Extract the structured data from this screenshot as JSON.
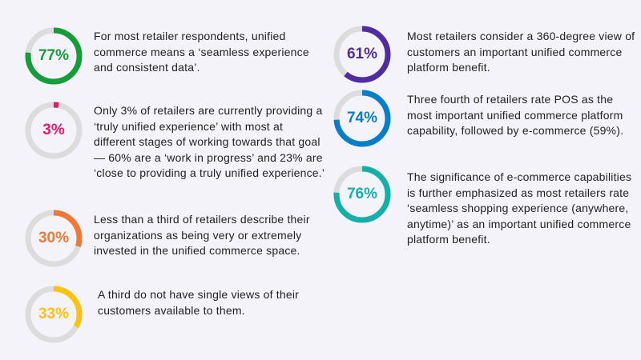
{
  "chart_data": [
    {
      "type": "donut",
      "value": 77,
      "label": "77%",
      "color": "#169c3a",
      "text": "For most retailer respondents, unified commerce means a ‘seamless experience and consistent data’."
    },
    {
      "type": "donut",
      "value": 3,
      "label": "3%",
      "color": "#e8196a",
      "text": "Only 3% of retailers are currently providing a ‘truly unified experience’ with most at different stages of working towards that goal— 60% are a ‘work in progress’ and 23% are ‘close to providing a truly unified experience.’"
    },
    {
      "type": "donut",
      "value": 30,
      "label": "30%",
      "color": "#f07838",
      "text": "Less than a third of retailers describe their organizations as being very or extremely invested in the unified commerce space."
    },
    {
      "type": "donut",
      "value": 33,
      "label": "33%",
      "color": "#ffc20e",
      "text": "A third do not have single views of their customers available to them."
    },
    {
      "type": "donut",
      "value": 61,
      "label": "61%",
      "color": "#4f2d9e",
      "text": "Most retailers consider a 360-degree view of customers an important unified commerce platform benefit."
    },
    {
      "type": "donut",
      "value": 74,
      "label": "74%",
      "color": "#0a7dc8",
      "text": "Three fourth of retailers rate POS as the most important unified commerce platform capability, followed by e-commerce (59%)."
    },
    {
      "type": "donut",
      "value": 76,
      "label": "76%",
      "color": "#14b0a8",
      "text": "The significance of e-commerce capabilities is further emphasized as most retailers rate ‘seamless shopping experience (anywhere, anytime)’ as an important unified commerce platform benefit."
    }
  ],
  "track_color": "#dcdcdc"
}
